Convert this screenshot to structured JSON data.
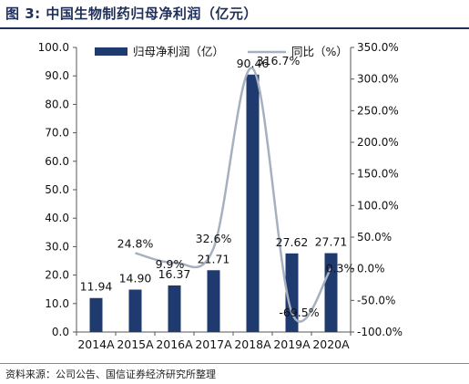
{
  "figure": {
    "title": "图 3:  中国生物制药归母净利润（亿元）",
    "source": "资料来源：公司公告、国信证券经济研究所整理"
  },
  "chart_data": {
    "type": "bar",
    "categories": [
      "2014A",
      "2015A",
      "2016A",
      "2017A",
      "2018A",
      "2019A",
      "2020A"
    ],
    "series": [
      {
        "name": "归母净利润（亿）",
        "type": "bar",
        "axis": "left",
        "color": "#1f3a6e",
        "values": [
          11.94,
          14.9,
          16.37,
          21.71,
          90.46,
          27.62,
          27.71
        ],
        "labels": [
          "11.94",
          "14.90",
          "16.37",
          "21.71",
          "90.46",
          "27.62",
          "27.71"
        ]
      },
      {
        "name": "同比（%）",
        "type": "line",
        "axis": "right",
        "color": "#a6b0bf",
        "smooth": true,
        "values": [
          null,
          24.8,
          9.9,
          32.6,
          316.7,
          -69.5,
          0.3
        ],
        "labels": [
          "",
          "24.8%",
          "9.9%",
          "32.6%",
          "316.7%",
          "-69.5%",
          "0.3%"
        ]
      }
    ],
    "y_left": {
      "ylim": [
        0,
        100
      ],
      "ticks": [
        0,
        10,
        20,
        30,
        40,
        50,
        60,
        70,
        80,
        90,
        100
      ],
      "tick_labels": [
        "0.0",
        "10.0",
        "20.0",
        "30.0",
        "40.0",
        "50.0",
        "60.0",
        "70.0",
        "80.0",
        "90.0",
        "100.0"
      ]
    },
    "y_right": {
      "ylim": [
        -100,
        350
      ],
      "ticks": [
        -100,
        -50,
        0,
        50,
        100,
        150,
        200,
        250,
        300,
        350
      ],
      "tick_labels": [
        "-100.0%",
        "-50.0%",
        "0.0%",
        "50.0%",
        "100.0%",
        "150.0%",
        "200.0%",
        "250.0%",
        "300.0%",
        "350.0%"
      ]
    },
    "legend": {
      "position": "top"
    },
    "grid": false
  }
}
